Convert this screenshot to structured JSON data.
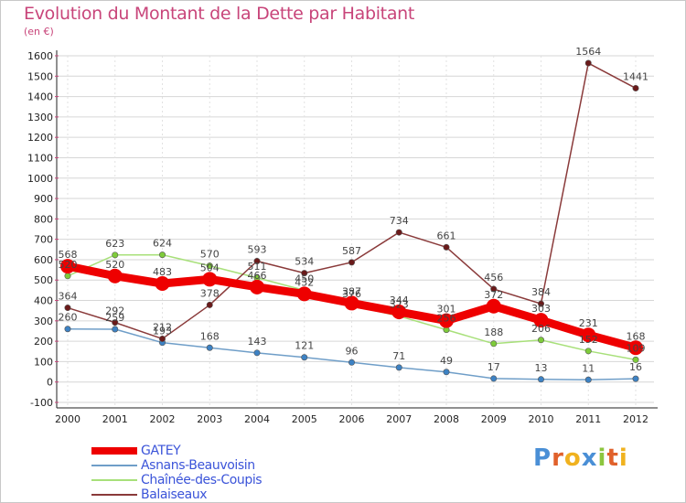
{
  "title": "Evolution du Montant de la Dette par Habitant",
  "unit": "(en €)",
  "logo": {
    "text": "Proxiti",
    "letters": [
      {
        "ch": "P",
        "color": "#4a8fd6"
      },
      {
        "ch": "r",
        "color": "#e0612b"
      },
      {
        "ch": "o",
        "color": "#f0b21f"
      },
      {
        "ch": "x",
        "color": "#4a8fd6"
      },
      {
        "ch": "i",
        "color": "#8cc63f"
      },
      {
        "ch": "t",
        "color": "#e0612b"
      },
      {
        "ch": "i",
        "color": "#f0b21f"
      }
    ]
  },
  "chart_data": {
    "type": "line",
    "x": [
      "2000",
      "2001",
      "2002",
      "2003",
      "2004",
      "2005",
      "2006",
      "2007",
      "2008",
      "2009",
      "2010",
      "2011",
      "2012"
    ],
    "ylim": [
      -100,
      1600
    ],
    "yticks": [
      -100,
      0,
      100,
      200,
      300,
      400,
      500,
      600,
      700,
      800,
      900,
      1000,
      1100,
      1200,
      1300,
      1400,
      1500,
      1600
    ],
    "grid": true,
    "legend_position": "bottom-left",
    "series": [
      {
        "name": "GATEY",
        "color": "#ee0000",
        "marker": "#ee0000",
        "width": 9,
        "values": [
          568,
          520,
          483,
          504,
          466,
          432,
          387,
          344,
          301,
          372,
          303,
          231,
          168
        ]
      },
      {
        "name": "Asnans-Beauvoisin",
        "color": "#6f9ec8",
        "marker": "#3d82c4",
        "width": 1.5,
        "values": [
          260,
          259,
          193,
          168,
          143,
          121,
          96,
          71,
          49,
          17,
          13,
          11,
          16
        ]
      },
      {
        "name": "Chaînée-des-Coupis",
        "color": "#a8e07a",
        "marker": "#7ecb3a",
        "width": 1.5,
        "values": [
          520,
          623,
          624,
          570,
          511,
          450,
          376,
          323,
          256,
          188,
          206,
          152,
          109
        ]
      },
      {
        "name": "Balaiseaux",
        "color": "#8a3a3a",
        "marker": "#6b1a1a",
        "width": 1.5,
        "values": [
          364,
          292,
          212,
          378,
          593,
          534,
          587,
          734,
          661,
          456,
          384,
          1564,
          1441
        ]
      }
    ]
  }
}
